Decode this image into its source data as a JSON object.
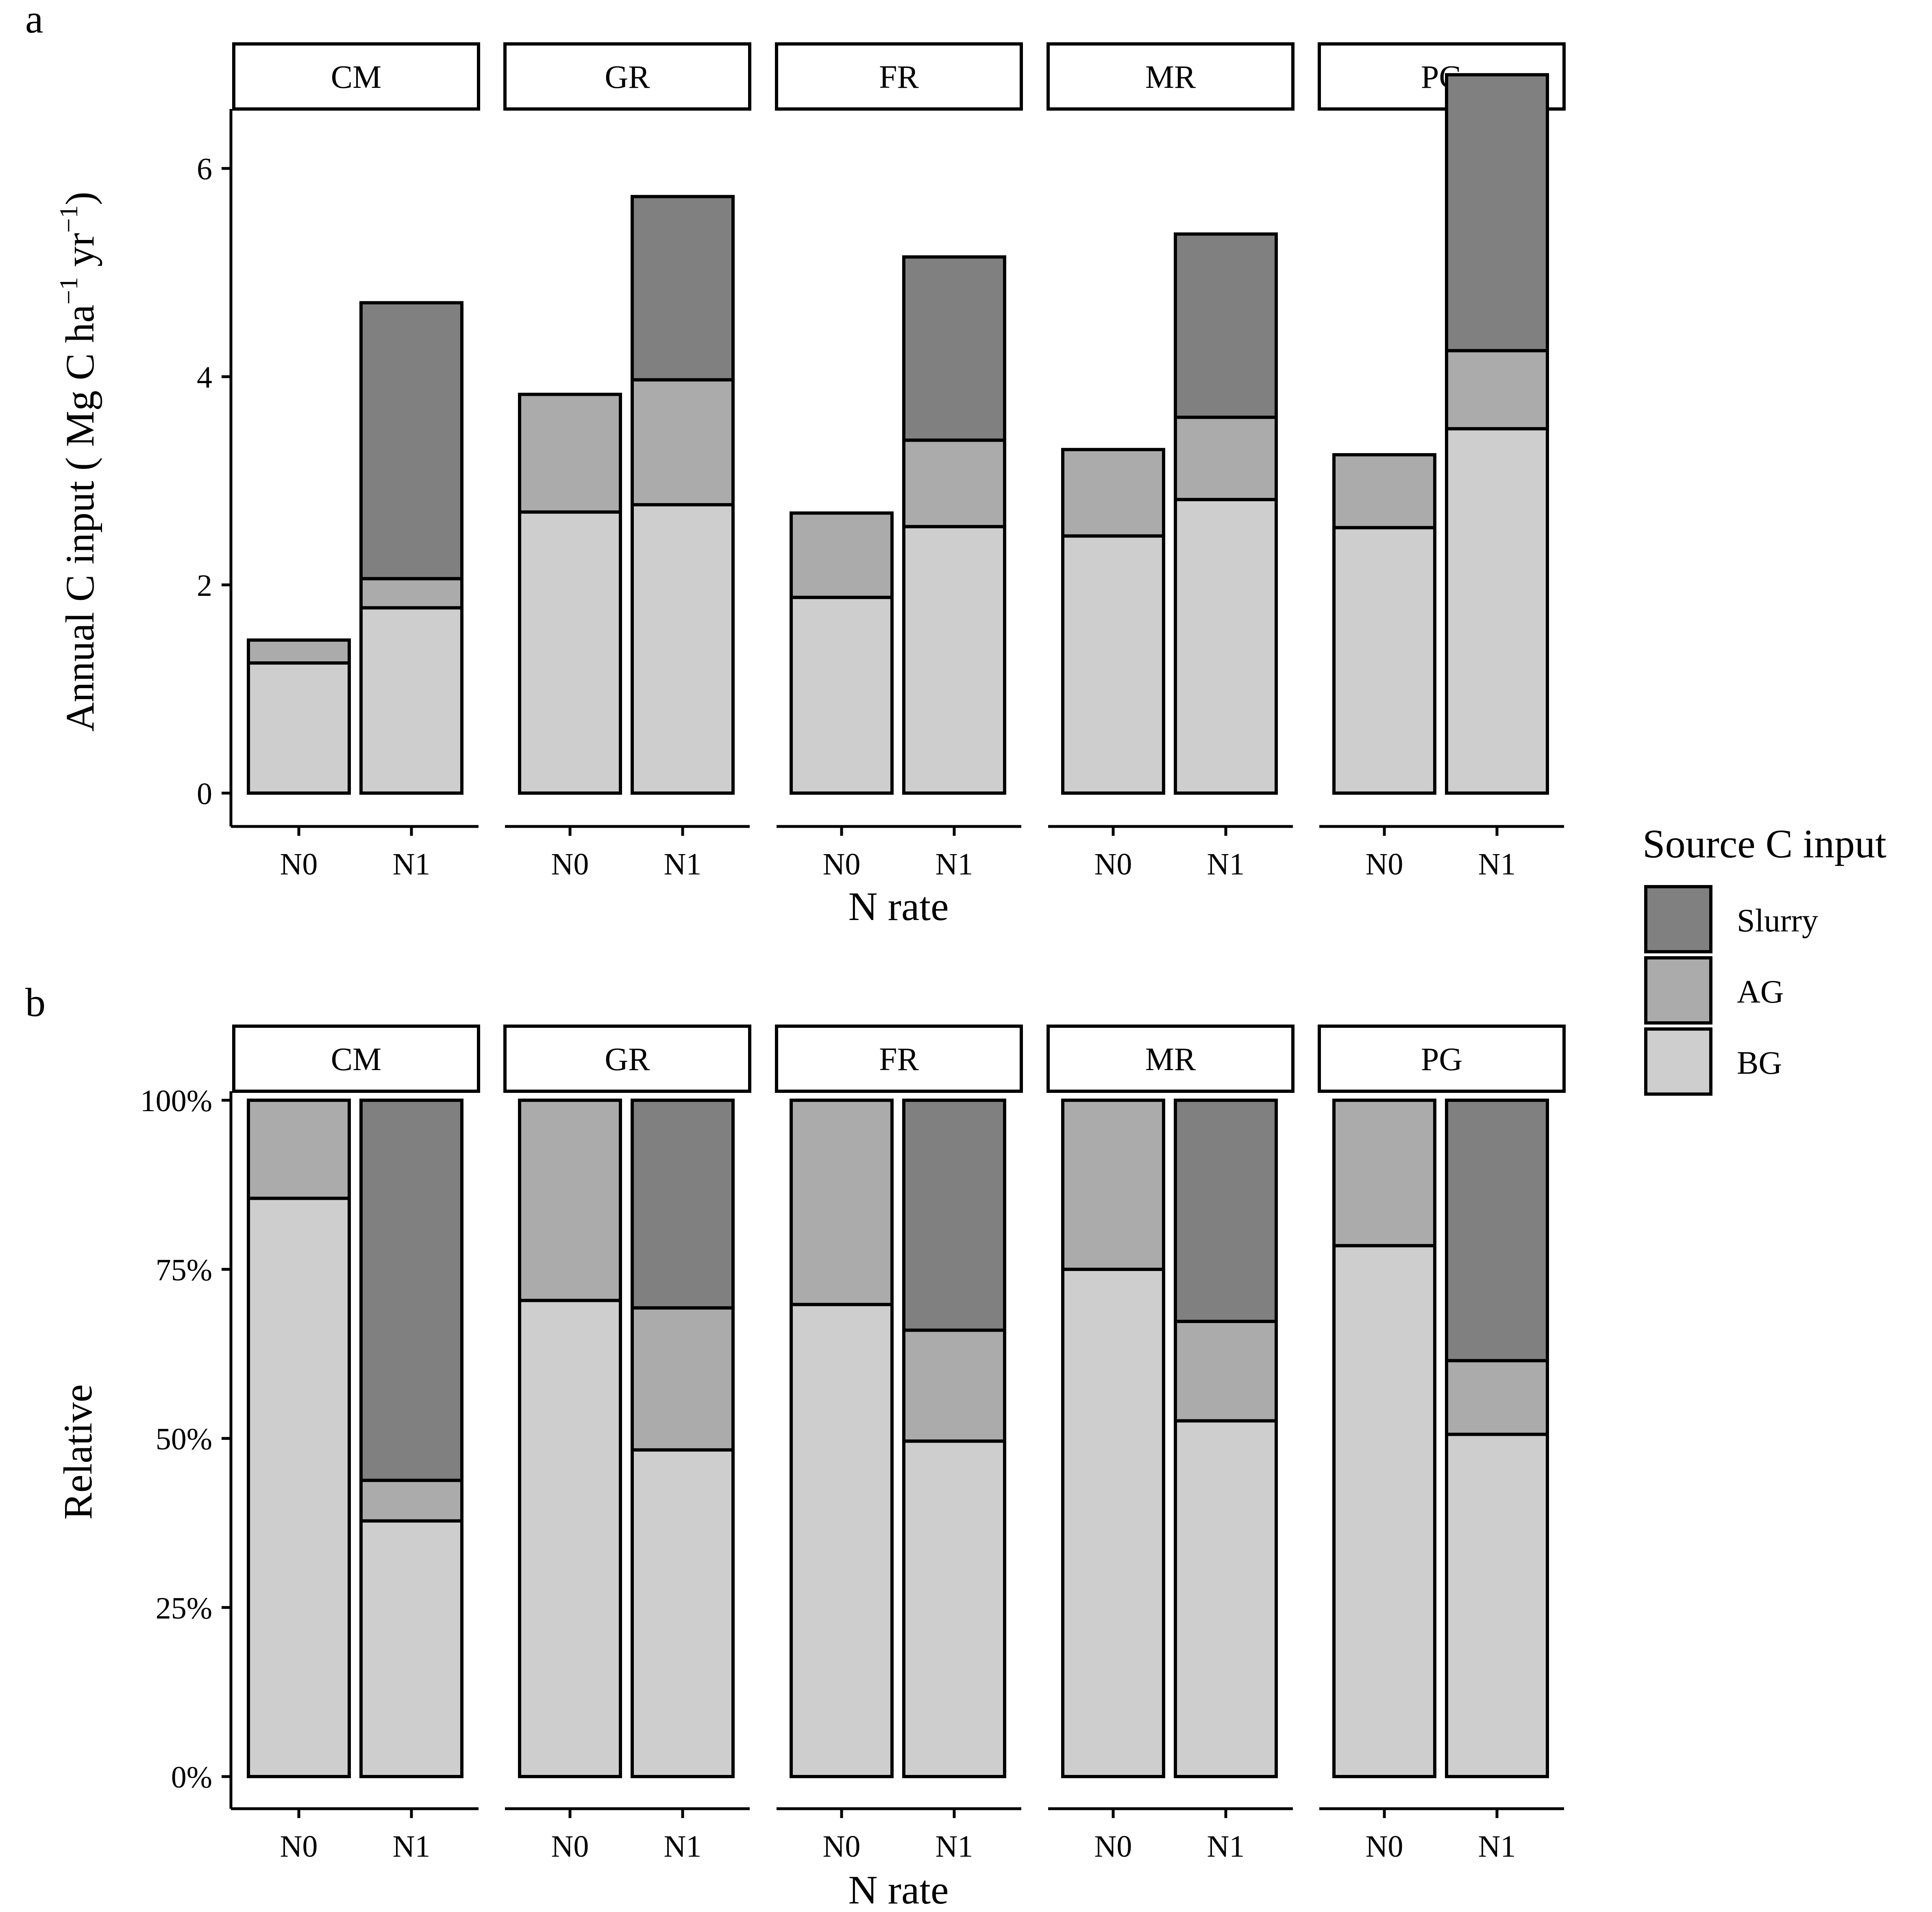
{
  "panel_labels": {
    "a": "a",
    "b": "b"
  },
  "facets": [
    "CM",
    "GR",
    "FR",
    "MR",
    "PG"
  ],
  "x_categories": [
    "N0",
    "N1"
  ],
  "legend": {
    "title": "Source C input",
    "items": [
      {
        "label": "Slurry",
        "color": "#808080"
      },
      {
        "label": "AG",
        "color": "#ababab"
      },
      {
        "label": "BG",
        "color": "#cdcecd"
      }
    ]
  },
  "colors": {
    "Slurry": "#808080",
    "AG": "#ababab",
    "BG": "#cdcecd",
    "strip_fill": "#ffffff",
    "outline": "#000000"
  },
  "chart_data": [
    {
      "type": "bar",
      "stacked": true,
      "panel": "a",
      "facets": [
        "CM",
        "GR",
        "FR",
        "MR",
        "PG"
      ],
      "categories": [
        "N0",
        "N1"
      ],
      "xlabel": "N rate",
      "ylabel": "Annual C input ( Mg C ha",
      "ylabel_sup1": "−1",
      "ylabel_mid": " yr",
      "ylabel_sup2": "−1",
      "ylabel_end": ")",
      "ylim": [
        0,
        7.2
      ],
      "y_ticks": [
        0,
        2,
        4,
        6
      ],
      "y_tick_labels": [
        "0",
        "2",
        "4",
        "6"
      ],
      "series": [
        {
          "name": "BG",
          "values": {
            "CM": [
              1.25,
              1.78
            ],
            "GR": [
              2.7,
              2.77
            ],
            "FR": [
              1.88,
              2.56
            ],
            "MR": [
              2.47,
              2.82
            ],
            "PG": [
              2.55,
              3.5
            ]
          }
        },
        {
          "name": "AG",
          "values": {
            "CM": [
              0.22,
              0.28
            ],
            "GR": [
              1.13,
              1.2
            ],
            "FR": [
              0.81,
              0.83
            ],
            "MR": [
              0.83,
              0.79
            ],
            "PG": [
              0.7,
              0.75
            ]
          }
        },
        {
          "name": "Slurry",
          "values": {
            "CM": [
              0,
              2.65
            ],
            "GR": [
              0,
              1.76
            ],
            "FR": [
              0,
              1.76
            ],
            "MR": [
              0,
              1.76
            ],
            "PG": [
              0,
              2.65
            ]
          }
        }
      ]
    },
    {
      "type": "bar",
      "stacked": true,
      "panel": "b",
      "facets": [
        "CM",
        "GR",
        "FR",
        "MR",
        "PG"
      ],
      "categories": [
        "N0",
        "N1"
      ],
      "xlabel": "N rate",
      "ylabel": "Relative",
      "ylim": [
        0,
        1.05
      ],
      "y_ticks": [
        0,
        0.25,
        0.5,
        0.75,
        1
      ],
      "y_tick_labels": [
        "0%",
        "25%",
        "50%",
        "75%",
        "100%"
      ],
      "series": [
        {
          "name": "BG",
          "values": {
            "CM": [
              0.855,
              0.378
            ],
            "GR": [
              0.704,
              0.483
            ],
            "FR": [
              0.698,
              0.496
            ],
            "MR": [
              0.75,
              0.526
            ],
            "PG": [
              0.785,
              0.506
            ]
          }
        },
        {
          "name": "AG",
          "values": {
            "CM": [
              0.145,
              0.06
            ],
            "GR": [
              0.296,
              0.21
            ],
            "FR": [
              0.302,
              0.164
            ],
            "MR": [
              0.25,
              0.147
            ],
            "PG": [
              0.215,
              0.109
            ]
          }
        },
        {
          "name": "Slurry",
          "values": {
            "CM": [
              0,
              0.562
            ],
            "GR": [
              0,
              0.307
            ],
            "FR": [
              0,
              0.34
            ],
            "MR": [
              0,
              0.327
            ],
            "PG": [
              0,
              0.385
            ]
          }
        }
      ]
    }
  ]
}
